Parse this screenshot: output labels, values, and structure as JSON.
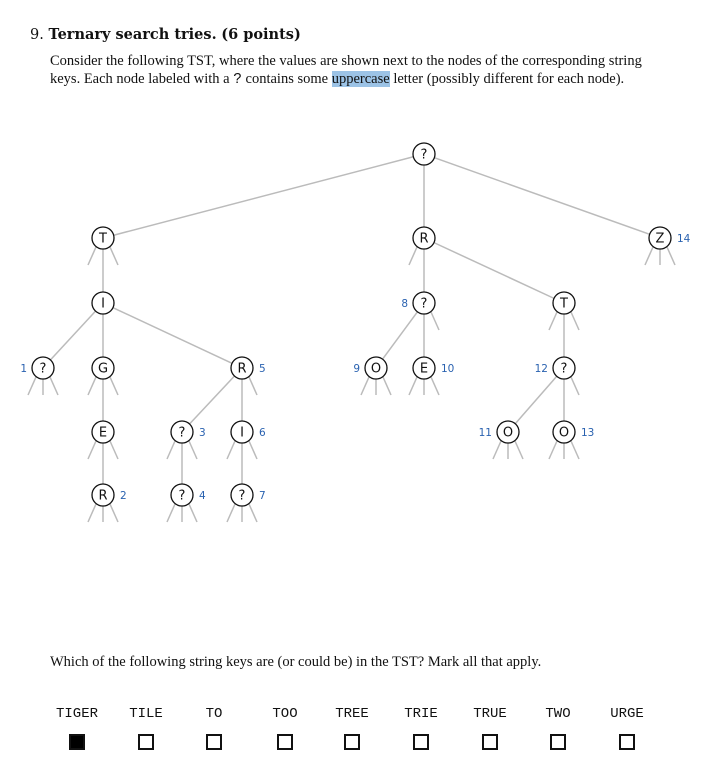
{
  "problem": {
    "number": "9.",
    "title": "Ternary search tries.",
    "points": "(6 points)",
    "intro_part1": "Consider the following TST, where the values are shown next to the nodes of the corresponding string keys. Each node labeled with a ",
    "intro_symbol": "?",
    "intro_part2": " contains some ",
    "intro_highlight": "uppercase",
    "intro_part3": " letter (possibly different for each node)."
  },
  "tree": {
    "nodes": [
      {
        "id": "root",
        "letter": "?",
        "value": null
      },
      {
        "id": "T1",
        "letter": "T",
        "value": null
      },
      {
        "id": "R1",
        "letter": "R",
        "value": null
      },
      {
        "id": "Z",
        "letter": "Z",
        "value": "14"
      },
      {
        "id": "I1",
        "letter": "I",
        "value": null
      },
      {
        "id": "Q1",
        "letter": "?",
        "value": "1"
      },
      {
        "id": "G",
        "letter": "G",
        "value": null
      },
      {
        "id": "R5",
        "letter": "R",
        "value": "5"
      },
      {
        "id": "E1",
        "letter": "E",
        "value": null
      },
      {
        "id": "Q3",
        "letter": "?",
        "value": "3"
      },
      {
        "id": "I6",
        "letter": "I",
        "value": "6"
      },
      {
        "id": "R2",
        "letter": "R",
        "value": "2"
      },
      {
        "id": "Q4",
        "letter": "?",
        "value": "4"
      },
      {
        "id": "Q7",
        "letter": "?",
        "value": "7"
      },
      {
        "id": "Q8",
        "letter": "?",
        "value": "8"
      },
      {
        "id": "T2",
        "letter": "T",
        "value": null
      },
      {
        "id": "O9",
        "letter": "O",
        "value": "9"
      },
      {
        "id": "E10",
        "letter": "E",
        "value": "10"
      },
      {
        "id": "Q12",
        "letter": "?",
        "value": "12"
      },
      {
        "id": "O11",
        "letter": "O",
        "value": "11"
      },
      {
        "id": "O13",
        "letter": "O",
        "value": "13"
      }
    ],
    "edges": [
      [
        "root",
        "T1",
        "left"
      ],
      [
        "root",
        "R1",
        "mid"
      ],
      [
        "root",
        "Z",
        "right"
      ],
      [
        "T1",
        "I1",
        "mid"
      ],
      [
        "I1",
        "Q1",
        "left"
      ],
      [
        "I1",
        "G",
        "mid"
      ],
      [
        "I1",
        "R5",
        "right"
      ],
      [
        "G",
        "E1",
        "mid"
      ],
      [
        "E1",
        "R2",
        "mid"
      ],
      [
        "R5",
        "Q3",
        "left"
      ],
      [
        "R5",
        "I6",
        "mid"
      ],
      [
        "Q3",
        "Q4",
        "mid"
      ],
      [
        "I6",
        "Q7",
        "mid"
      ],
      [
        "R1",
        "Q8",
        "mid"
      ],
      [
        "R1",
        "T2",
        "right"
      ],
      [
        "Q8",
        "O9",
        "left"
      ],
      [
        "Q8",
        "E10",
        "mid"
      ],
      [
        "T2",
        "Q12",
        "mid"
      ],
      [
        "Q12",
        "O11",
        "left"
      ],
      [
        "Q12",
        "O13",
        "mid"
      ]
    ],
    "colors": {
      "edge": "#bbbbbb",
      "node_stroke": "#111111",
      "value_label": "#2a62b0"
    }
  },
  "question": "Which of the following string keys are (or could be) in the TST? Mark all that apply.",
  "options": [
    {
      "label": "TIGER",
      "checked": true
    },
    {
      "label": "TILE",
      "checked": false
    },
    {
      "label": "TO",
      "checked": false
    },
    {
      "label": "TOO",
      "checked": false
    },
    {
      "label": "TREE",
      "checked": false
    },
    {
      "label": "TRIE",
      "checked": false
    },
    {
      "label": "TRUE",
      "checked": false
    },
    {
      "label": "TWO",
      "checked": false
    },
    {
      "label": "URGE",
      "checked": false
    }
  ]
}
